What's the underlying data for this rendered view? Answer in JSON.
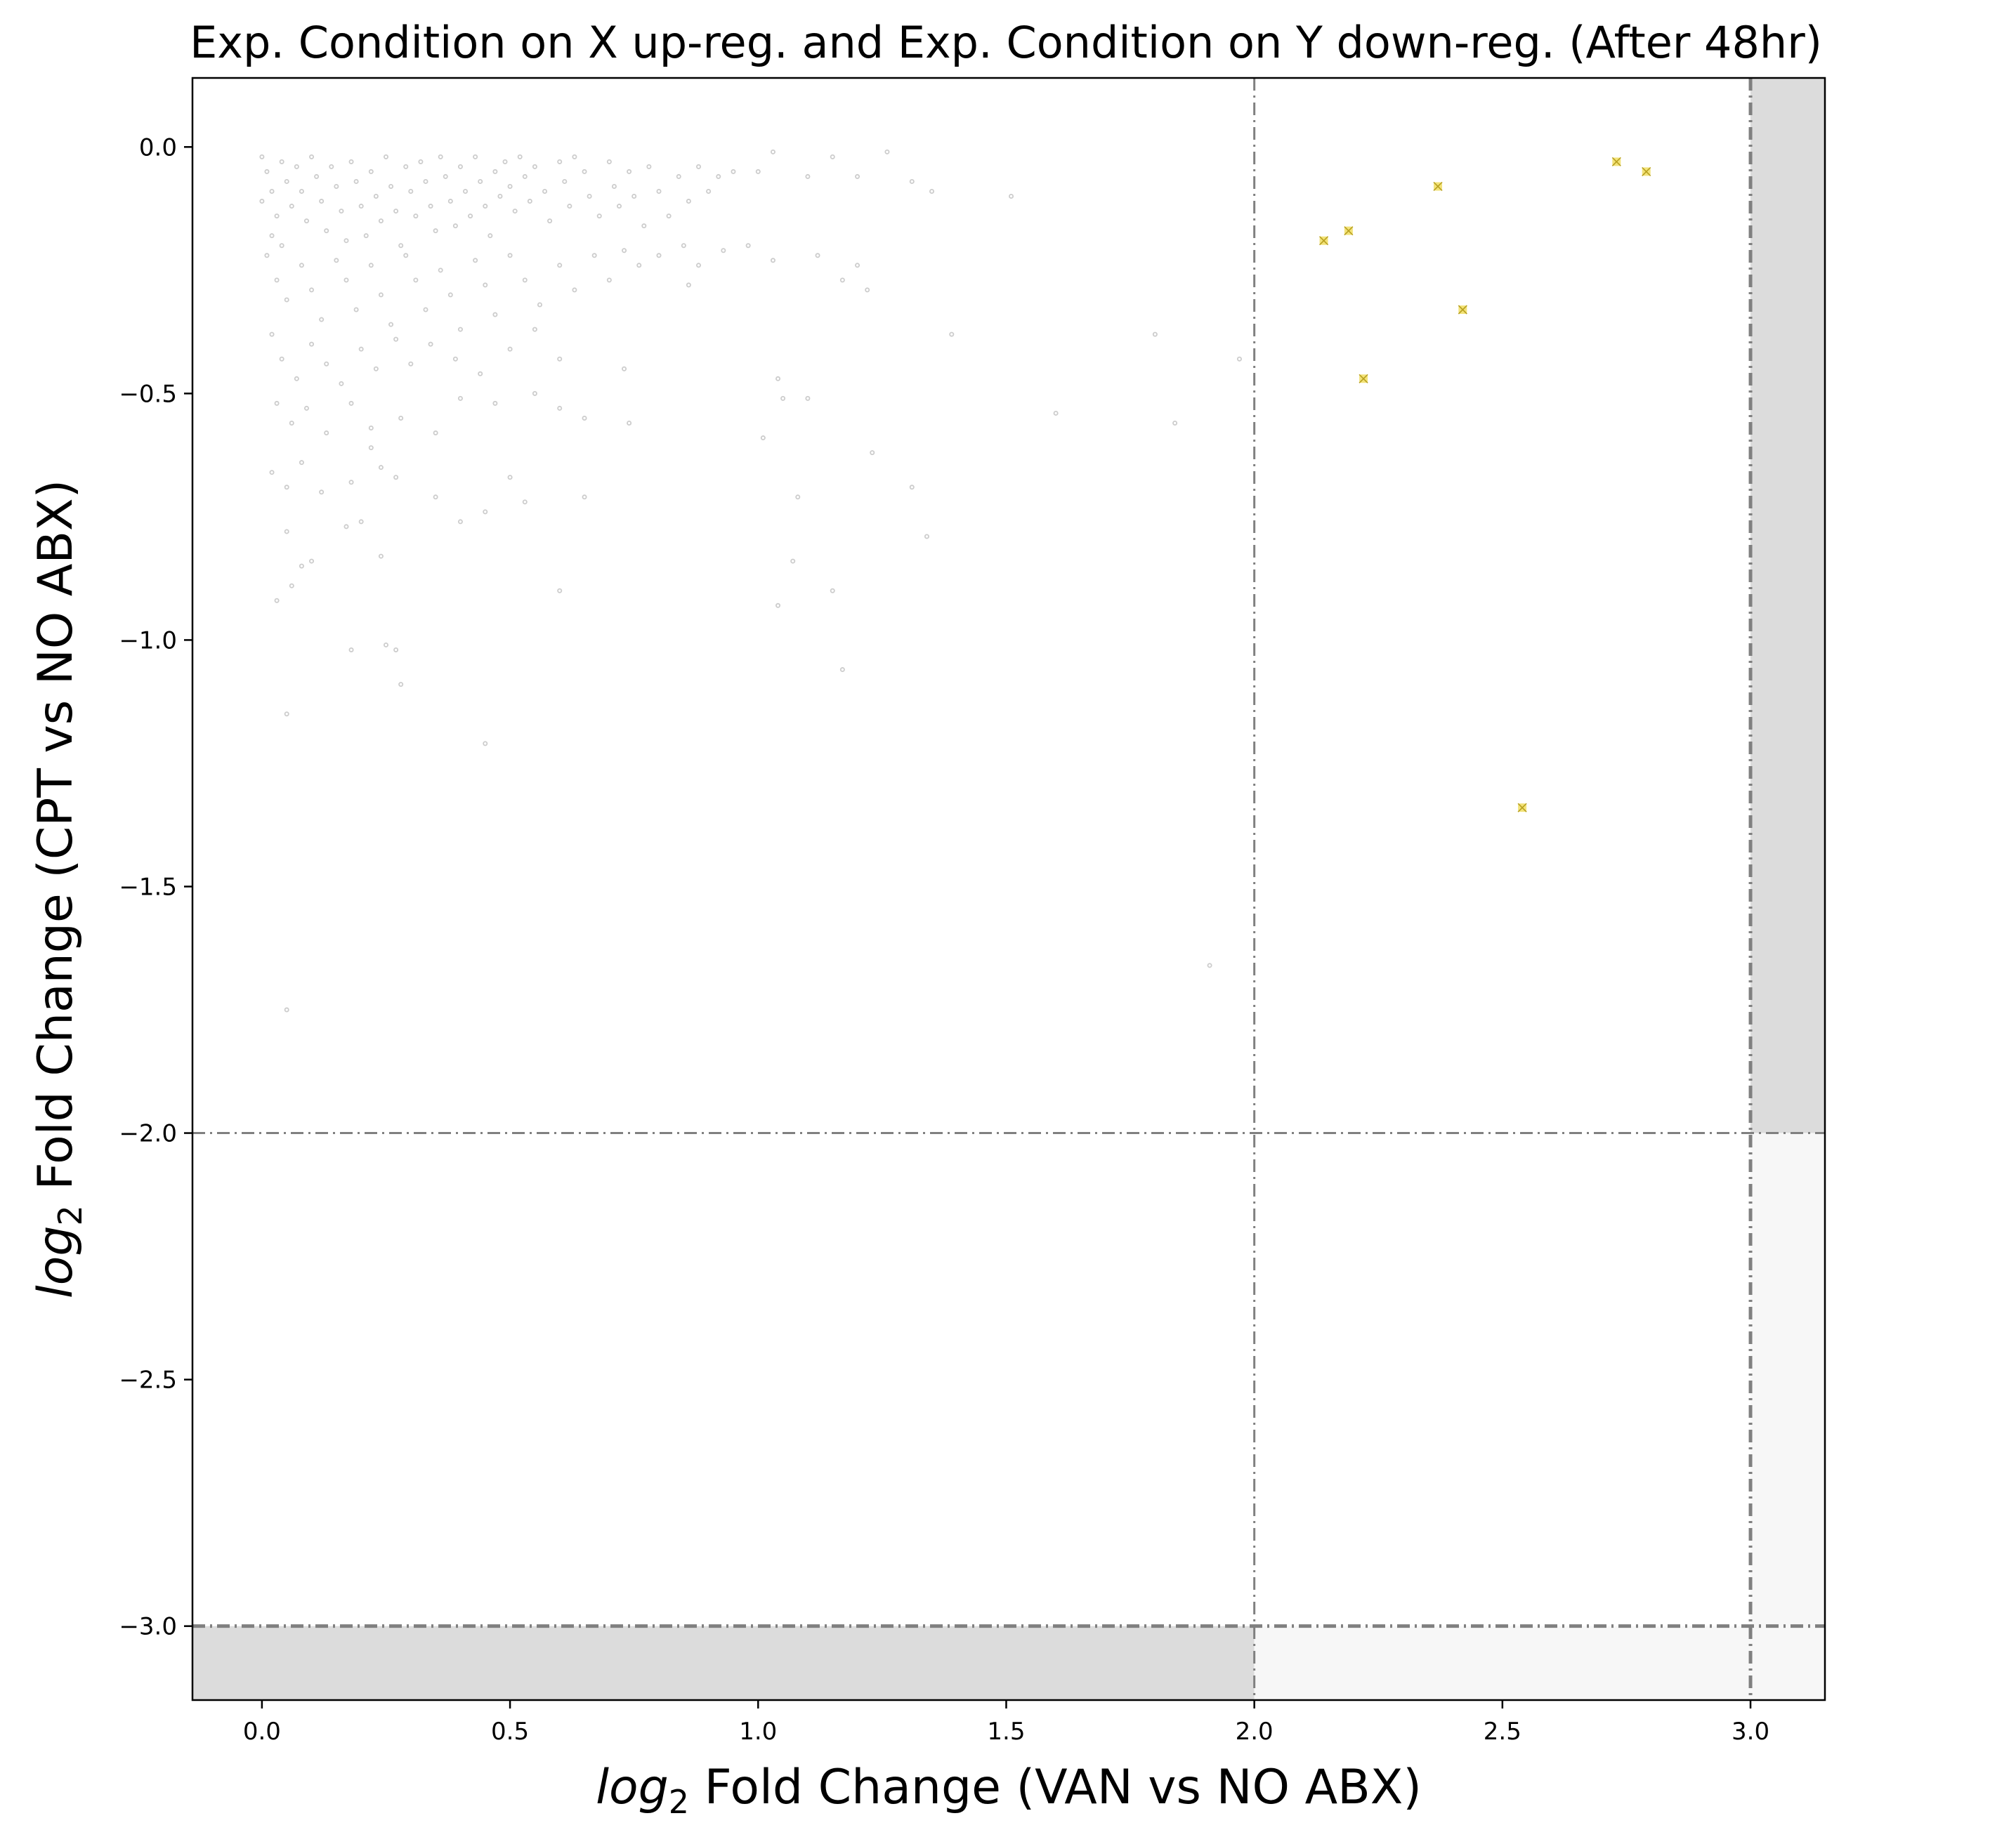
{
  "chart_data": {
    "type": "scatter",
    "title": "Exp. Condition on X up-reg. and Exp. Condition on Y down-reg. (After 48hr)",
    "xlabel_italic": "log",
    "xlabel_sub": "2",
    "xlabel_rest": " Fold Change (VAN vs NO ABX)",
    "ylabel_italic": "log",
    "ylabel_sub": "2",
    "ylabel_rest": " Fold Change (CPT vs NO ABX)",
    "xlim": [
      -0.14,
      3.15
    ],
    "ylim": [
      -3.15,
      0.14
    ],
    "x_ticks": [
      0.0,
      0.5,
      1.0,
      1.5,
      2.0,
      2.5,
      3.0
    ],
    "x_tick_labels": [
      "0.0",
      "0.5",
      "1.0",
      "1.5",
      "2.0",
      "2.5",
      "3.0"
    ],
    "y_ticks": [
      0.0,
      -0.5,
      -1.0,
      -1.5,
      -2.0,
      -2.5,
      -3.0
    ],
    "y_tick_labels": [
      "0.0",
      "−0.5",
      "−1.0",
      "−1.5",
      "−2.0",
      "−2.5",
      "−3.0"
    ],
    "grid": false,
    "thresholds": {
      "x_inner": 2.0,
      "x_outer": 3.0,
      "y_inner": -2.0,
      "y_outer": -3.0,
      "line_color": "#808080"
    },
    "shaded_regions": [
      {
        "x": [
          3.0,
          3.15
        ],
        "y": [
          -2.0,
          0.14
        ],
        "color": "#dcdcdc"
      },
      {
        "x": [
          -0.14,
          2.0
        ],
        "y": [
          -3.15,
          -3.0
        ],
        "color": "#dcdcdc"
      },
      {
        "x": [
          3.0,
          3.15
        ],
        "y": [
          -3.15,
          -2.0
        ],
        "color": "#f7f7f7"
      },
      {
        "x": [
          2.0,
          3.0
        ],
        "y": [
          -3.15,
          -3.0
        ],
        "color": "#f7f7f7"
      }
    ],
    "series": [
      {
        "role": "highlighted",
        "color": "#f2e06a",
        "edge_color": "#b8a020",
        "marker": "x",
        "points": [
          [
            2.14,
            -0.19
          ],
          [
            2.19,
            -0.17
          ],
          [
            2.22,
            -0.47
          ],
          [
            2.37,
            -0.08
          ],
          [
            2.42,
            -0.33
          ],
          [
            2.54,
            -1.34
          ],
          [
            2.73,
            -0.03
          ],
          [
            2.79,
            -0.05
          ]
        ]
      },
      {
        "role": "background",
        "color": "#cccccc",
        "marker": "circle",
        "points": [
          [
            0.0,
            -0.02
          ],
          [
            0.01,
            -0.05
          ],
          [
            0.02,
            -0.09
          ],
          [
            0.0,
            -0.11
          ],
          [
            0.03,
            -0.14
          ],
          [
            0.02,
            -0.18
          ],
          [
            0.04,
            -0.03
          ],
          [
            0.05,
            -0.07
          ],
          [
            0.06,
            -0.12
          ],
          [
            0.04,
            -0.2
          ],
          [
            0.07,
            -0.04
          ],
          [
            0.08,
            -0.09
          ],
          [
            0.09,
            -0.15
          ],
          [
            0.1,
            -0.02
          ],
          [
            0.11,
            -0.06
          ],
          [
            0.12,
            -0.11
          ],
          [
            0.13,
            -0.17
          ],
          [
            0.14,
            -0.04
          ],
          [
            0.15,
            -0.08
          ],
          [
            0.16,
            -0.13
          ],
          [
            0.17,
            -0.19
          ],
          [
            0.18,
            -0.03
          ],
          [
            0.19,
            -0.07
          ],
          [
            0.2,
            -0.12
          ],
          [
            0.21,
            -0.18
          ],
          [
            0.22,
            -0.05
          ],
          [
            0.23,
            -0.1
          ],
          [
            0.24,
            -0.15
          ],
          [
            0.25,
            -0.02
          ],
          [
            0.26,
            -0.08
          ],
          [
            0.27,
            -0.13
          ],
          [
            0.28,
            -0.2
          ],
          [
            0.29,
            -0.04
          ],
          [
            0.3,
            -0.09
          ],
          [
            0.31,
            -0.14
          ],
          [
            0.32,
            -0.03
          ],
          [
            0.33,
            -0.07
          ],
          [
            0.34,
            -0.12
          ],
          [
            0.35,
            -0.17
          ],
          [
            0.36,
            -0.02
          ],
          [
            0.37,
            -0.06
          ],
          [
            0.38,
            -0.11
          ],
          [
            0.39,
            -0.16
          ],
          [
            0.4,
            -0.04
          ],
          [
            0.41,
            -0.09
          ],
          [
            0.42,
            -0.14
          ],
          [
            0.43,
            -0.02
          ],
          [
            0.44,
            -0.07
          ],
          [
            0.45,
            -0.12
          ],
          [
            0.46,
            -0.18
          ],
          [
            0.47,
            -0.05
          ],
          [
            0.48,
            -0.1
          ],
          [
            0.49,
            -0.03
          ],
          [
            0.5,
            -0.08
          ],
          [
            0.51,
            -0.13
          ],
          [
            0.52,
            -0.02
          ],
          [
            0.53,
            -0.06
          ],
          [
            0.54,
            -0.11
          ],
          [
            0.55,
            -0.04
          ],
          [
            0.57,
            -0.09
          ],
          [
            0.58,
            -0.15
          ],
          [
            0.6,
            -0.03
          ],
          [
            0.61,
            -0.07
          ],
          [
            0.62,
            -0.12
          ],
          [
            0.63,
            -0.02
          ],
          [
            0.65,
            -0.05
          ],
          [
            0.66,
            -0.1
          ],
          [
            0.68,
            -0.14
          ],
          [
            0.7,
            -0.03
          ],
          [
            0.71,
            -0.08
          ],
          [
            0.72,
            -0.12
          ],
          [
            0.74,
            -0.05
          ],
          [
            0.75,
            -0.1
          ],
          [
            0.77,
            -0.16
          ],
          [
            0.78,
            -0.04
          ],
          [
            0.8,
            -0.09
          ],
          [
            0.82,
            -0.14
          ],
          [
            0.84,
            -0.06
          ],
          [
            0.86,
            -0.11
          ],
          [
            0.88,
            -0.04
          ],
          [
            0.9,
            -0.09
          ],
          [
            0.92,
            -0.06
          ],
          [
            0.95,
            -0.05
          ],
          [
            1.0,
            -0.05
          ],
          [
            1.03,
            -0.01
          ],
          [
            1.1,
            -0.06
          ],
          [
            1.15,
            -0.02
          ],
          [
            1.2,
            -0.06
          ],
          [
            1.26,
            -0.01
          ],
          [
            1.31,
            -0.07
          ],
          [
            1.35,
            -0.09
          ],
          [
            1.51,
            -0.1
          ],
          [
            0.01,
            -0.22
          ],
          [
            0.03,
            -0.27
          ],
          [
            0.05,
            -0.31
          ],
          [
            0.08,
            -0.24
          ],
          [
            0.1,
            -0.29
          ],
          [
            0.12,
            -0.35
          ],
          [
            0.15,
            -0.23
          ],
          [
            0.17,
            -0.27
          ],
          [
            0.19,
            -0.33
          ],
          [
            0.22,
            -0.24
          ],
          [
            0.24,
            -0.3
          ],
          [
            0.26,
            -0.36
          ],
          [
            0.29,
            -0.22
          ],
          [
            0.31,
            -0.27
          ],
          [
            0.33,
            -0.33
          ],
          [
            0.36,
            -0.25
          ],
          [
            0.38,
            -0.3
          ],
          [
            0.4,
            -0.37
          ],
          [
            0.43,
            -0.23
          ],
          [
            0.45,
            -0.28
          ],
          [
            0.47,
            -0.34
          ],
          [
            0.5,
            -0.22
          ],
          [
            0.53,
            -0.27
          ],
          [
            0.56,
            -0.32
          ],
          [
            0.6,
            -0.24
          ],
          [
            0.63,
            -0.29
          ],
          [
            0.67,
            -0.22
          ],
          [
            0.7,
            -0.27
          ],
          [
            0.73,
            -0.21
          ],
          [
            0.76,
            -0.24
          ],
          [
            0.8,
            -0.22
          ],
          [
            0.85,
            -0.2
          ],
          [
            0.88,
            -0.24
          ],
          [
            0.93,
            -0.21
          ],
          [
            0.98,
            -0.2
          ],
          [
            1.03,
            -0.23
          ],
          [
            1.12,
            -0.22
          ],
          [
            1.17,
            -0.27
          ],
          [
            1.2,
            -0.24
          ],
          [
            1.22,
            -0.29
          ],
          [
            1.39,
            -0.38
          ],
          [
            1.8,
            -0.38
          ],
          [
            0.02,
            -0.38
          ],
          [
            0.04,
            -0.43
          ],
          [
            0.07,
            -0.47
          ],
          [
            0.1,
            -0.4
          ],
          [
            0.13,
            -0.44
          ],
          [
            0.16,
            -0.48
          ],
          [
            0.2,
            -0.41
          ],
          [
            0.23,
            -0.45
          ],
          [
            0.27,
            -0.39
          ],
          [
            0.3,
            -0.44
          ],
          [
            0.34,
            -0.4
          ],
          [
            0.39,
            -0.43
          ],
          [
            0.44,
            -0.46
          ],
          [
            0.5,
            -0.41
          ],
          [
            0.55,
            -0.37
          ],
          [
            0.73,
            -0.45
          ],
          [
            0.6,
            -0.43
          ],
          [
            0.86,
            -0.28
          ],
          [
            1.97,
            -0.43
          ],
          [
            0.03,
            -0.52
          ],
          [
            0.06,
            -0.56
          ],
          [
            0.09,
            -0.53
          ],
          [
            0.13,
            -0.58
          ],
          [
            0.18,
            -0.52
          ],
          [
            0.22,
            -0.57
          ],
          [
            0.28,
            -0.55
          ],
          [
            0.35,
            -0.58
          ],
          [
            0.4,
            -0.51
          ],
          [
            0.47,
            -0.52
          ],
          [
            0.55,
            -0.5
          ],
          [
            0.6,
            -0.53
          ],
          [
            0.65,
            -0.55
          ],
          [
            0.74,
            -0.56
          ],
          [
            1.01,
            -0.59
          ],
          [
            1.04,
            -0.47
          ],
          [
            1.05,
            -0.51
          ],
          [
            1.1,
            -0.51
          ],
          [
            1.6,
            -0.54
          ],
          [
            1.84,
            -0.56
          ],
          [
            0.02,
            -0.66
          ],
          [
            0.05,
            -0.69
          ],
          [
            0.08,
            -0.64
          ],
          [
            0.12,
            -0.7
          ],
          [
            0.18,
            -0.68
          ],
          [
            0.22,
            -0.61
          ],
          [
            0.24,
            -0.65
          ],
          [
            0.27,
            -0.67
          ],
          [
            0.35,
            -0.71
          ],
          [
            0.45,
            -0.74
          ],
          [
            0.5,
            -0.67
          ],
          [
            0.53,
            -0.72
          ],
          [
            0.65,
            -0.71
          ],
          [
            1.08,
            -0.71
          ],
          [
            1.23,
            -0.62
          ],
          [
            1.31,
            -0.69
          ],
          [
            0.05,
            -0.78
          ],
          [
            0.1,
            -0.84
          ],
          [
            0.17,
            -0.77
          ],
          [
            0.2,
            -0.76
          ],
          [
            0.24,
            -0.83
          ],
          [
            0.4,
            -0.76
          ],
          [
            0.06,
            -0.89
          ],
          [
            0.08,
            -0.85
          ],
          [
            0.03,
            -0.92
          ],
          [
            0.6,
            -0.9
          ],
          [
            1.04,
            -0.93
          ],
          [
            1.07,
            -0.84
          ],
          [
            1.15,
            -0.9
          ],
          [
            1.34,
            -0.79
          ],
          [
            0.18,
            -1.02
          ],
          [
            0.25,
            -1.01
          ],
          [
            0.27,
            -1.02
          ],
          [
            0.28,
            -1.09
          ],
          [
            1.17,
            -1.06
          ],
          [
            0.05,
            -1.15
          ],
          [
            0.45,
            -1.21
          ],
          [
            1.91,
            -1.66
          ],
          [
            0.05,
            -1.75
          ]
        ]
      }
    ]
  }
}
